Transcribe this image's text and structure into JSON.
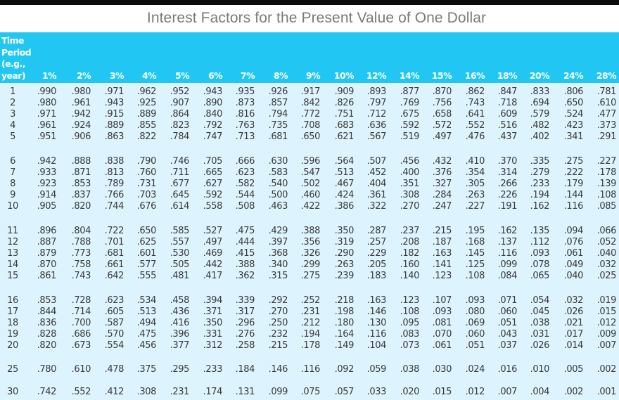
{
  "title": "Interest Factors for the Present Value of One Dollar",
  "header": {
    "period_label_lines": [
      "Time",
      "Period",
      "(e.g.,",
      "year)"
    ],
    "rates": [
      "1%",
      "2%",
      "3%",
      "4%",
      "5%",
      "6%",
      "7%",
      "8%",
      "9%",
      "10%",
      "12%",
      "14%",
      "15%",
      "16%",
      "18%",
      "20%",
      "24%",
      "28%"
    ]
  },
  "colors": {
    "header_bg": "#21c7f2",
    "body_bg": "#ddf3fd",
    "title_text": "#7a7a7a",
    "cell_text": "#3a3a3a"
  },
  "rows": [
    {
      "period": "1",
      "values": [
        ".990",
        ".980",
        ".971",
        ".962",
        ".952",
        ".943",
        ".935",
        ".926",
        ".917",
        ".909",
        ".893",
        ".877",
        ".870",
        ".862",
        ".847",
        ".833",
        ".806",
        ".781"
      ]
    },
    {
      "period": "2",
      "values": [
        ".980",
        ".961",
        ".943",
        ".925",
        ".907",
        ".890",
        ".873",
        ".857",
        ".842",
        ".826",
        ".797",
        ".769",
        ".756",
        ".743",
        ".718",
        ".694",
        ".650",
        ".610"
      ]
    },
    {
      "period": "3",
      "values": [
        ".971",
        ".942",
        ".915",
        ".889",
        ".864",
        ".840",
        ".816",
        ".794",
        ".772",
        ".751",
        ".712",
        ".675",
        ".658",
        ".641",
        ".609",
        ".579",
        ".524",
        ".477"
      ]
    },
    {
      "period": "4",
      "values": [
        ".961",
        ".924",
        ".889",
        ".855",
        ".823",
        ".792",
        ".763",
        ".735",
        ".708",
        ".683",
        ".636",
        ".592",
        ".572",
        ".552",
        ".516",
        ".482",
        ".423",
        ".373"
      ]
    },
    {
      "period": "5",
      "values": [
        ".951",
        ".906",
        ".863",
        ".822",
        ".784",
        ".747",
        ".713",
        ".681",
        ".650",
        ".621",
        ".567",
        ".519",
        ".497",
        ".476",
        ".437",
        ".402",
        ".341",
        ".291"
      ]
    },
    {
      "period": "6",
      "values": [
        ".942",
        ".888",
        ".838",
        ".790",
        ".746",
        ".705",
        ".666",
        ".630",
        ".596",
        ".564",
        ".507",
        ".456",
        ".432",
        ".410",
        ".370",
        ".335",
        ".275",
        ".227"
      ]
    },
    {
      "period": "7",
      "values": [
        ".933",
        ".871",
        ".813",
        ".760",
        ".711",
        ".665",
        ".623",
        ".583",
        ".547",
        ".513",
        ".452",
        ".400",
        ".376",
        ".354",
        ".314",
        ".279",
        ".222",
        ".178"
      ]
    },
    {
      "period": "8",
      "values": [
        ".923",
        ".853",
        ".789",
        ".731",
        ".677",
        ".627",
        ".582",
        ".540",
        ".502",
        ".467",
        ".404",
        ".351",
        ".327",
        ".305",
        ".266",
        ".233",
        ".179",
        ".139"
      ]
    },
    {
      "period": "9",
      "values": [
        ".914",
        ".837",
        ".766",
        ".703",
        ".645",
        ".592",
        ".544",
        ".500",
        ".460",
        ".424",
        ".361",
        ".308",
        ".284",
        ".263",
        ".226",
        ".194",
        ".144",
        ".108"
      ]
    },
    {
      "period": "10",
      "values": [
        ".905",
        ".820",
        ".744",
        ".676",
        ".614",
        ".558",
        ".508",
        ".463",
        ".422",
        ".386",
        ".322",
        ".270",
        ".247",
        ".227",
        ".191",
        ".162",
        ".116",
        ".085"
      ]
    },
    {
      "period": "11",
      "values": [
        ".896",
        ".804",
        ".722",
        ".650",
        ".585",
        ".527",
        ".475",
        ".429",
        ".388",
        ".350",
        ".287",
        ".237",
        ".215",
        ".195",
        ".162",
        ".135",
        ".094",
        ".066"
      ]
    },
    {
      "period": "12",
      "values": [
        ".887",
        ".788",
        ".701",
        ".625",
        ".557",
        ".497",
        ".444",
        ".397",
        ".356",
        ".319",
        ".257",
        ".208",
        ".187",
        ".168",
        ".137",
        ".112",
        ".076",
        ".052"
      ]
    },
    {
      "period": "13",
      "values": [
        ".879",
        ".773",
        ".681",
        ".601",
        ".530",
        ".469",
        ".415",
        ".368",
        ".326",
        ".290",
        ".229",
        ".182",
        ".163",
        ".145",
        ".116",
        ".093",
        ".061",
        ".040"
      ]
    },
    {
      "period": "14",
      "values": [
        ".870",
        ".758",
        ".661",
        ".577",
        ".505",
        ".442",
        ".388",
        ".340",
        ".299",
        ".263",
        ".205",
        ".160",
        ".141",
        ".125",
        ".099",
        ".078",
        ".049",
        ".032"
      ]
    },
    {
      "period": "15",
      "values": [
        ".861",
        ".743",
        ".642",
        ".555",
        ".481",
        ".417",
        ".362",
        ".315",
        ".275",
        ".239",
        ".183",
        ".140",
        ".123",
        ".108",
        ".084",
        ".065",
        ".040",
        ".025"
      ]
    },
    {
      "period": "16",
      "values": [
        ".853",
        ".728",
        ".623",
        ".534",
        ".458",
        ".394",
        ".339",
        ".292",
        ".252",
        ".218",
        ".163",
        ".123",
        ".107",
        ".093",
        ".071",
        ".054",
        ".032",
        ".019"
      ]
    },
    {
      "period": "17",
      "values": [
        ".844",
        ".714",
        ".605",
        ".513",
        ".436",
        ".371",
        ".317",
        ".270",
        ".231",
        ".198",
        ".146",
        ".108",
        ".093",
        ".080",
        ".060",
        ".045",
        ".026",
        ".015"
      ]
    },
    {
      "period": "18",
      "values": [
        ".836",
        ".700",
        ".587",
        ".494",
        ".416",
        ".350",
        ".296",
        ".250",
        ".212",
        ".180",
        ".130",
        ".095",
        ".081",
        ".069",
        ".051",
        ".038",
        ".021",
        ".012"
      ]
    },
    {
      "period": "19",
      "values": [
        ".828",
        ".686",
        ".570",
        ".475",
        ".396",
        ".331",
        ".276",
        ".232",
        ".194",
        ".164",
        ".116",
        ".083",
        ".070",
        ".060",
        ".043",
        ".031",
        ".017",
        ".009"
      ]
    },
    {
      "period": "20",
      "values": [
        ".820",
        ".673",
        ".554",
        ".456",
        ".377",
        ".312",
        ".258",
        ".215",
        ".178",
        ".149",
        ".104",
        ".073",
        ".061",
        ".051",
        ".037",
        ".026",
        ".014",
        ".007"
      ]
    },
    {
      "period": "25",
      "values": [
        ".780",
        ".610",
        ".478",
        ".375",
        ".295",
        ".233",
        ".184",
        ".146",
        ".116",
        ".092",
        ".059",
        ".038",
        ".030",
        ".024",
        ".016",
        ".010",
        ".005",
        ".002"
      ]
    },
    {
      "period": "30",
      "values": [
        ".742",
        ".552",
        ".412",
        ".308",
        ".231",
        ".174",
        ".131",
        ".099",
        ".075",
        ".057",
        ".033",
        ".020",
        ".015",
        ".012",
        ".007",
        ".004",
        ".002",
        ".001"
      ]
    }
  ]
}
